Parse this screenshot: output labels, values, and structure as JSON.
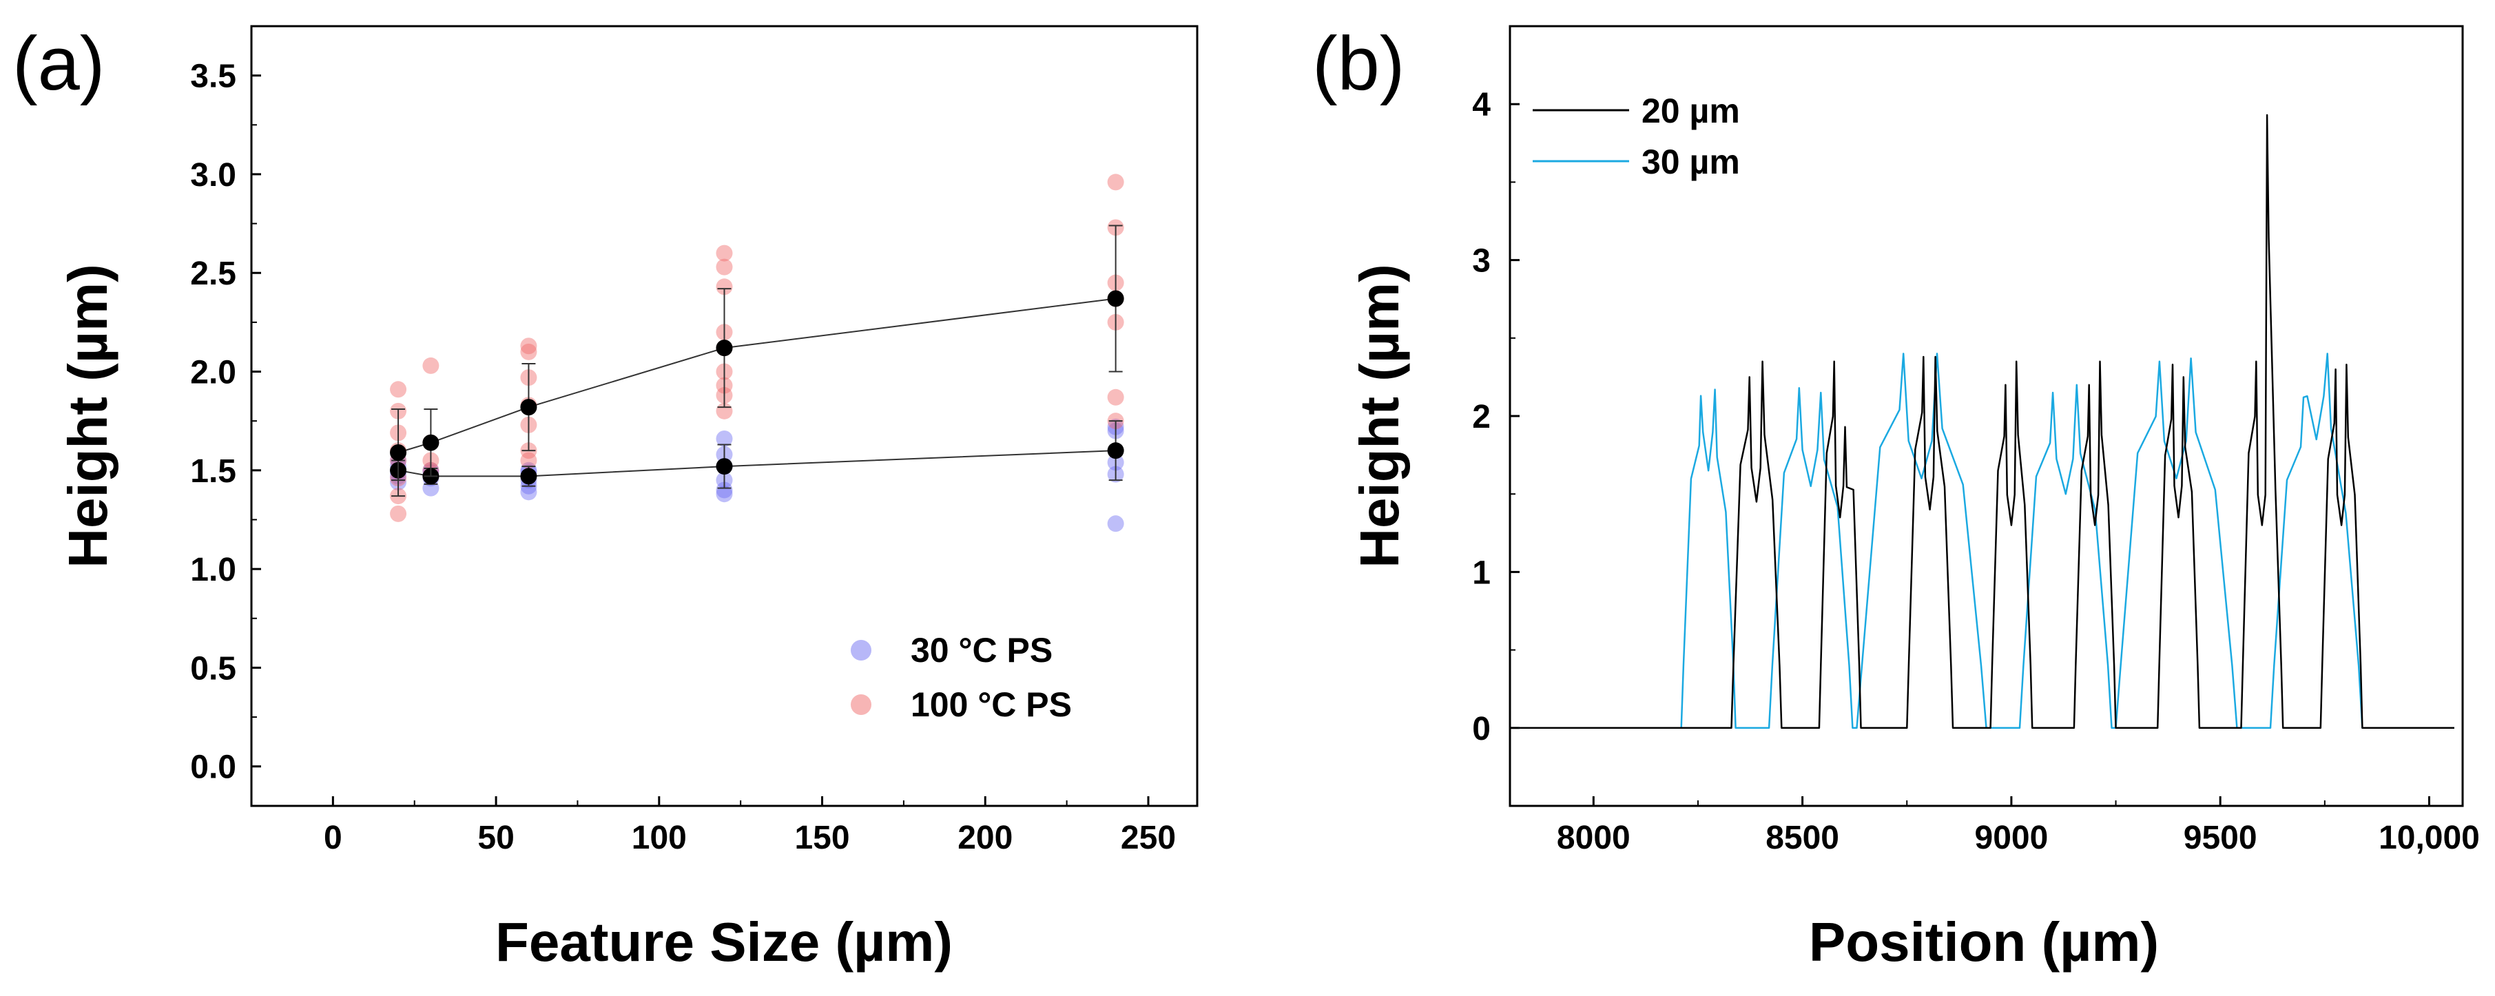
{
  "chart_data": [
    {
      "panel_label": "(a)",
      "type": "scatter",
      "xlabel": "Feature Size (µm)",
      "ylabel": "Height (µm)",
      "xlim": [
        -25,
        265
      ],
      "ylim": [
        -0.2,
        3.75
      ],
      "xticks": [
        0,
        50,
        100,
        150,
        200,
        250
      ],
      "xtick_labels": [
        "0",
        "50",
        "100",
        "150",
        "200",
        "250"
      ],
      "yticks": [
        0,
        0.5,
        1,
        1.5,
        2,
        2.5,
        3,
        3.5
      ],
      "ytick_labels": [
        "0.0",
        "0.5",
        "1.0",
        "1.5",
        "2.0",
        "2.5",
        "3.0",
        "3.5"
      ],
      "legend_position": "bottom-right",
      "series": [
        {
          "name": "30 °C PS",
          "color": "#6f6ff2",
          "points": [
            [
              20,
              1.47
            ],
            [
              20,
              1.52
            ],
            [
              20,
              1.55
            ],
            [
              20,
              1.44
            ],
            [
              20,
              1.49
            ],
            [
              30,
              1.41
            ],
            [
              30,
              1.46
            ],
            [
              30,
              1.49
            ],
            [
              30,
              1.5
            ],
            [
              60,
              1.39
            ],
            [
              60,
              1.42
            ],
            [
              60,
              1.45
            ],
            [
              60,
              1.49
            ],
            [
              60,
              1.5
            ],
            [
              120,
              1.38
            ],
            [
              120,
              1.4
            ],
            [
              120,
              1.45
            ],
            [
              120,
              1.52
            ],
            [
              120,
              1.58
            ],
            [
              120,
              1.66
            ],
            [
              240,
              1.23
            ],
            [
              240,
              1.48
            ],
            [
              240,
              1.54
            ],
            [
              240,
              1.7
            ],
            [
              240,
              1.72
            ]
          ],
          "means": [
            [
              20,
              1.5
            ],
            [
              30,
              1.47
            ],
            [
              60,
              1.47
            ],
            [
              120,
              1.52
            ],
            [
              240,
              1.6
            ]
          ],
          "errors": [
            0.05,
            0.04,
            0.05,
            0.11,
            0.15
          ]
        },
        {
          "name": "100 °C PS",
          "color": "#f06b6b",
          "points": [
            [
              20,
              1.28
            ],
            [
              20,
              1.37
            ],
            [
              20,
              1.46
            ],
            [
              20,
              1.55
            ],
            [
              20,
              1.6
            ],
            [
              20,
              1.69
            ],
            [
              20,
              1.8
            ],
            [
              20,
              1.91
            ],
            [
              30,
              1.47
            ],
            [
              30,
              1.5
            ],
            [
              30,
              1.55
            ],
            [
              30,
              1.64
            ],
            [
              30,
              2.03
            ],
            [
              60,
              1.55
            ],
            [
              60,
              1.6
            ],
            [
              60,
              1.73
            ],
            [
              60,
              1.83
            ],
            [
              60,
              1.97
            ],
            [
              60,
              2.1
            ],
            [
              60,
              2.13
            ],
            [
              120,
              1.8
            ],
            [
              120,
              1.88
            ],
            [
              120,
              1.93
            ],
            [
              120,
              2.0
            ],
            [
              120,
              2.12
            ],
            [
              120,
              2.2
            ],
            [
              120,
              2.43
            ],
            [
              120,
              2.53
            ],
            [
              120,
              2.6
            ],
            [
              240,
              1.75
            ],
            [
              240,
              1.87
            ],
            [
              240,
              2.25
            ],
            [
              240,
              2.37
            ],
            [
              240,
              2.45
            ],
            [
              240,
              2.73
            ],
            [
              240,
              2.96
            ]
          ],
          "means": [
            [
              20,
              1.59
            ],
            [
              30,
              1.64
            ],
            [
              60,
              1.82
            ],
            [
              120,
              2.12
            ],
            [
              240,
              2.37
            ]
          ],
          "errors": [
            0.22,
            0.17,
            0.22,
            0.3,
            0.37
          ]
        }
      ]
    },
    {
      "panel_label": "(b)",
      "type": "line",
      "xlabel": "Position (µm)",
      "ylabel": "Height (µm)",
      "xlim": [
        7800,
        10080
      ],
      "ylim": [
        -0.5,
        4.5
      ],
      "xticks": [
        8000,
        8500,
        9000,
        9500,
        10000
      ],
      "xtick_labels": [
        "8000",
        "8500",
        "9000",
        "9500",
        "10,000"
      ],
      "yticks": [
        0,
        1,
        2,
        3,
        4
      ],
      "ytick_labels": [
        "0",
        "1",
        "2",
        "3",
        "4"
      ],
      "legend_position": "top-left",
      "series": [
        {
          "name": "20 µm",
          "color": "#000000",
          "features": [
            {
              "start": 8330,
              "end": 8450,
              "peak_left": 2.25,
              "peak_right": 2.35,
              "mid": 1.45
            },
            {
              "start": 8540,
              "end": 8640,
              "peak_left": 2.35,
              "peak_right": 1.93,
              "mid": 1.35
            },
            {
              "start": 8750,
              "end": 8860,
              "peak_left": 2.38,
              "peak_right": 2.38,
              "mid": 1.4
            },
            {
              "start": 8950,
              "end": 9050,
              "peak_left": 2.2,
              "peak_right": 2.35,
              "mid": 1.3
            },
            {
              "start": 9150,
              "end": 9250,
              "peak_left": 2.2,
              "peak_right": 2.35,
              "mid": 1.3
            },
            {
              "start": 9350,
              "end": 9450,
              "peak_left": 2.33,
              "peak_right": 2.25,
              "mid": 1.35
            },
            {
              "start": 9550,
              "end": 9650,
              "peak_left": 2.35,
              "peak_right": 3.93,
              "mid": 1.3
            },
            {
              "start": 9740,
              "end": 9840,
              "peak_left": 2.3,
              "peak_right": 2.33,
              "mid": 1.3
            }
          ]
        },
        {
          "name": "30 µm",
          "color": "#1ba9e1",
          "features": [
            {
              "start": 8210,
              "end": 8340,
              "peak_left": 2.13,
              "peak_right": 2.17,
              "mid": 1.65
            },
            {
              "start": 8420,
              "end": 8620,
              "peak_left": 2.18,
              "peak_right": 2.15,
              "mid": 1.55
            },
            {
              "start": 8630,
              "end": 8940,
              "peak_left": 2.4,
              "peak_right": 2.4,
              "mid": 1.6
            },
            {
              "start": 9020,
              "end": 9240,
              "peak_left": 2.15,
              "peak_right": 2.2,
              "mid": 1.5
            },
            {
              "start": 9250,
              "end": 9540,
              "peak_left": 2.35,
              "peak_right": 2.37,
              "mid": 1.6
            },
            {
              "start": 9620,
              "end": 9840,
              "peak_left": 2.12,
              "peak_right": 2.4,
              "mid": 1.85
            }
          ]
        }
      ]
    }
  ]
}
